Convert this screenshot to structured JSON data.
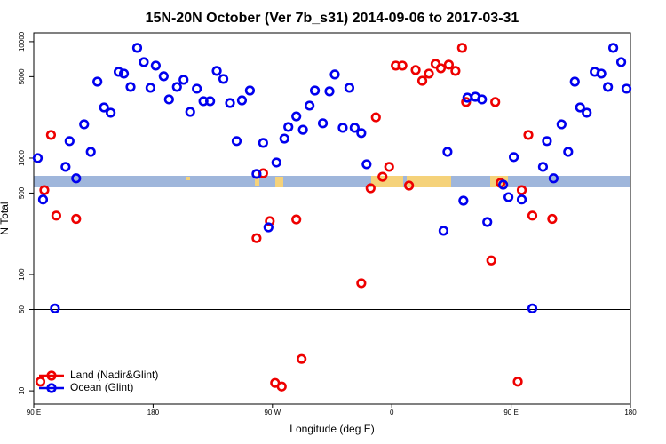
{
  "chart_data": {
    "type": "scatter",
    "title": "15N-20N October (Ver 7b_s31)   2014-09-06 to 2017-03-31",
    "xlabel": "Longitude (deg E)",
    "ylabel": "N Total",
    "xlim": [
      90,
      540
    ],
    "ylim": [
      7.7,
      11900
    ],
    "log_y": true,
    "hline": 50,
    "legend": "lower left",
    "xticks": [
      {
        "value": 90,
        "label": "90 E"
      },
      180,
      {
        "value": 270,
        "label": "90 W"
      },
      {
        "value": 360,
        "label": "0"
      },
      {
        "value": 450,
        "label": "90 E"
      },
      {
        "value": 540,
        "label": "180"
      }
    ],
    "yticks": [
      10,
      50,
      100,
      500,
      1000,
      5000,
      10000
    ],
    "series": [
      {
        "name": "Land (Nadir&Glint)",
        "color": "#ee0000",
        "x": [
          95,
          98,
          103,
          107,
          122,
          258,
          263,
          268,
          272,
          277,
          288,
          292,
          337,
          344,
          348,
          353,
          358,
          363,
          368,
          373,
          378,
          383,
          388,
          393,
          397,
          403,
          408,
          413,
          416,
          435,
          438,
          442,
          455,
          458,
          463,
          466,
          481
        ],
        "values": [
          12,
          530,
          1580,
          320,
          300,
          205,
          740,
          287,
          11.7,
          10.9,
          297,
          18.8,
          84,
          550,
          2240,
          690,
          840,
          6220,
          6220,
          580,
          5700,
          4610,
          5310,
          6440,
          5900,
          6340,
          5600,
          8850,
          3030,
          132,
          3030,
          611,
          12,
          530,
          1580,
          320,
          300
        ]
      },
      {
        "name": "Ocean (Glint)",
        "color": "#0000ee",
        "x": [
          93,
          97,
          106,
          114,
          117,
          122,
          128,
          133,
          138,
          143,
          148,
          154,
          158,
          163,
          168,
          173,
          178,
          182,
          188,
          192,
          198,
          203,
          208,
          213,
          218,
          223,
          228,
          233,
          238,
          243,
          247,
          253,
          258,
          263,
          267,
          273,
          279,
          282,
          288,
          293,
          298,
          302,
          308,
          313,
          317,
          323,
          328,
          332,
          337,
          341,
          399,
          402,
          414,
          417,
          423,
          428,
          432,
          444,
          448,
          452,
          458,
          466,
          474,
          477,
          482,
          488,
          493,
          498,
          502,
          507,
          513,
          518,
          523,
          527,
          533,
          537
        ],
        "values": [
          1000,
          440,
          51,
          840,
          1400,
          670,
          1950,
          1130,
          4530,
          2720,
          2450,
          5500,
          5310,
          4080,
          8850,
          6670,
          4010,
          6220,
          5040,
          3190,
          4080,
          4700,
          2490,
          3940,
          3080,
          3080,
          5600,
          4780,
          2970,
          1400,
          3130,
          3800,
          730,
          1350,
          254,
          916,
          1470,
          1850,
          2280,
          1750,
          2820,
          3800,
          1990,
          3740,
          5220,
          1820,
          4010,
          1820,
          1640,
          885,
          237,
          1130,
          430,
          3300,
          3360,
          3190,
          282,
          590,
          461,
          1020,
          440,
          51,
          840,
          1400,
          670,
          1950,
          1130,
          4530,
          2720,
          2450,
          5500,
          5310,
          4080,
          8850,
          6670,
          3940
        ]
      }
    ]
  }
}
